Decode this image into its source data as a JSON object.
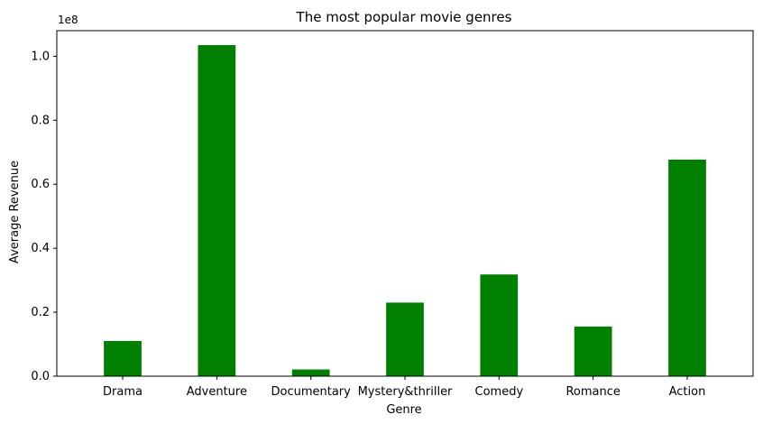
{
  "chart_data": {
    "type": "bar",
    "title": "The most popular movie genres",
    "xlabel": "Genre",
    "ylabel": "Average Revenue",
    "y_offset_label": "1e8",
    "categories": [
      "Drama",
      "Adventure",
      "Documentary",
      "Mystery&thriller",
      "Comedy",
      "Romance",
      "Action"
    ],
    "values": [
      11000000,
      103500000,
      2100000,
      23000000,
      31800000,
      15500000,
      67700000
    ],
    "ylim": [
      0,
      108000000
    ],
    "yticks": [
      0,
      20000000,
      40000000,
      60000000,
      80000000,
      100000000
    ],
    "ytick_labels": [
      "0.0",
      "0.2",
      "0.4",
      "0.6",
      "0.8",
      "1.0"
    ],
    "bar_color": "#008000",
    "grid": false,
    "legend": "none"
  }
}
